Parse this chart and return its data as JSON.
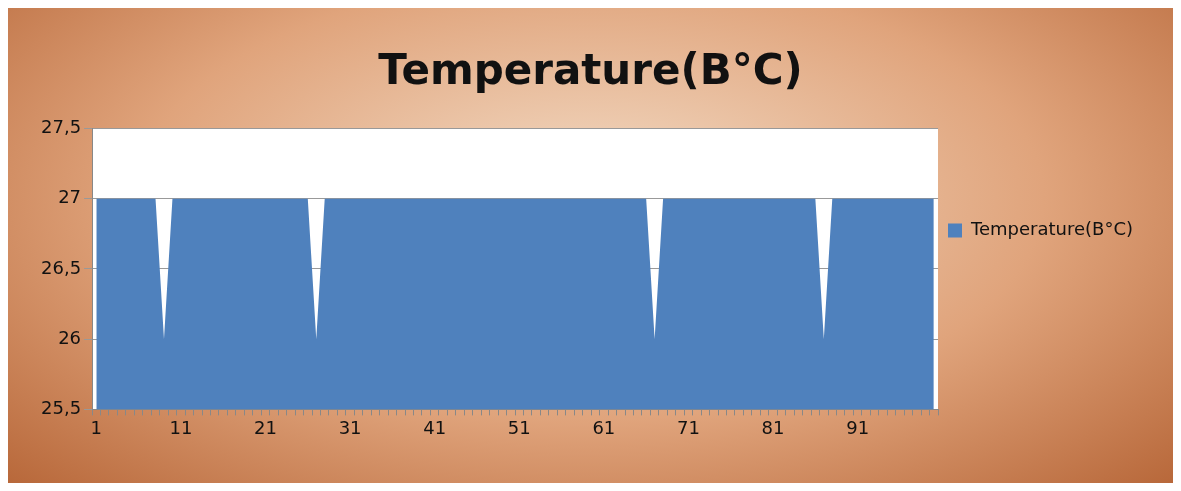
{
  "chart_data": {
    "type": "area",
    "title": "Temperature(B°C)",
    "categories": [
      "1",
      null,
      null,
      null,
      null,
      null,
      null,
      null,
      null,
      null,
      "11",
      null,
      null,
      null,
      null,
      null,
      null,
      null,
      null,
      null,
      "21",
      null,
      null,
      null,
      null,
      null,
      null,
      null,
      null,
      null,
      "31",
      null,
      null,
      null,
      null,
      null,
      null,
      null,
      null,
      null,
      "41",
      null,
      null,
      null,
      null,
      null,
      null,
      null,
      null,
      null,
      "51",
      null,
      null,
      null,
      null,
      null,
      null,
      null,
      null,
      null,
      "61",
      null,
      null,
      null,
      null,
      null,
      null,
      null,
      null,
      null,
      "71",
      null,
      null,
      null,
      null,
      null,
      null,
      null,
      null,
      null,
      "81",
      null,
      null,
      null,
      null,
      null,
      null,
      null,
      null,
      null,
      "91",
      null,
      null,
      null,
      null,
      null,
      null,
      null,
      null,
      null
    ],
    "series": [
      {
        "name": "Temperature(B°C)",
        "color": "#4f81bd",
        "values": [
          27,
          27,
          27,
          27,
          27,
          27,
          27,
          27,
          26,
          27,
          27,
          27,
          27,
          27,
          27,
          27,
          27,
          27,
          27,
          27,
          27,
          27,
          27,
          27,
          27,
          27,
          26,
          27,
          27,
          27,
          27,
          27,
          27,
          27,
          27,
          27,
          27,
          27,
          27,
          27,
          27,
          27,
          27,
          27,
          27,
          27,
          27,
          27,
          27,
          27,
          27,
          27,
          27,
          27,
          27,
          27,
          27,
          27,
          27,
          27,
          27,
          27,
          27,
          27,
          27,
          27,
          26,
          27,
          27,
          27,
          27,
          27,
          27,
          27,
          27,
          27,
          27,
          27,
          27,
          27,
          27,
          27,
          27,
          27,
          27,
          27,
          26,
          27,
          27,
          27,
          27,
          27,
          27,
          27,
          27,
          27,
          27,
          27,
          27,
          27
        ]
      }
    ],
    "ylim": [
      25.5,
      27.5
    ],
    "yticks": [
      {
        "value": 25.5,
        "label": "25,5"
      },
      26,
      {
        "value": 26.5,
        "label": "26,5"
      },
      27,
      {
        "value": 27.5,
        "label": "27,5"
      }
    ],
    "grid": "y",
    "legend": "right",
    "marker": "none"
  }
}
